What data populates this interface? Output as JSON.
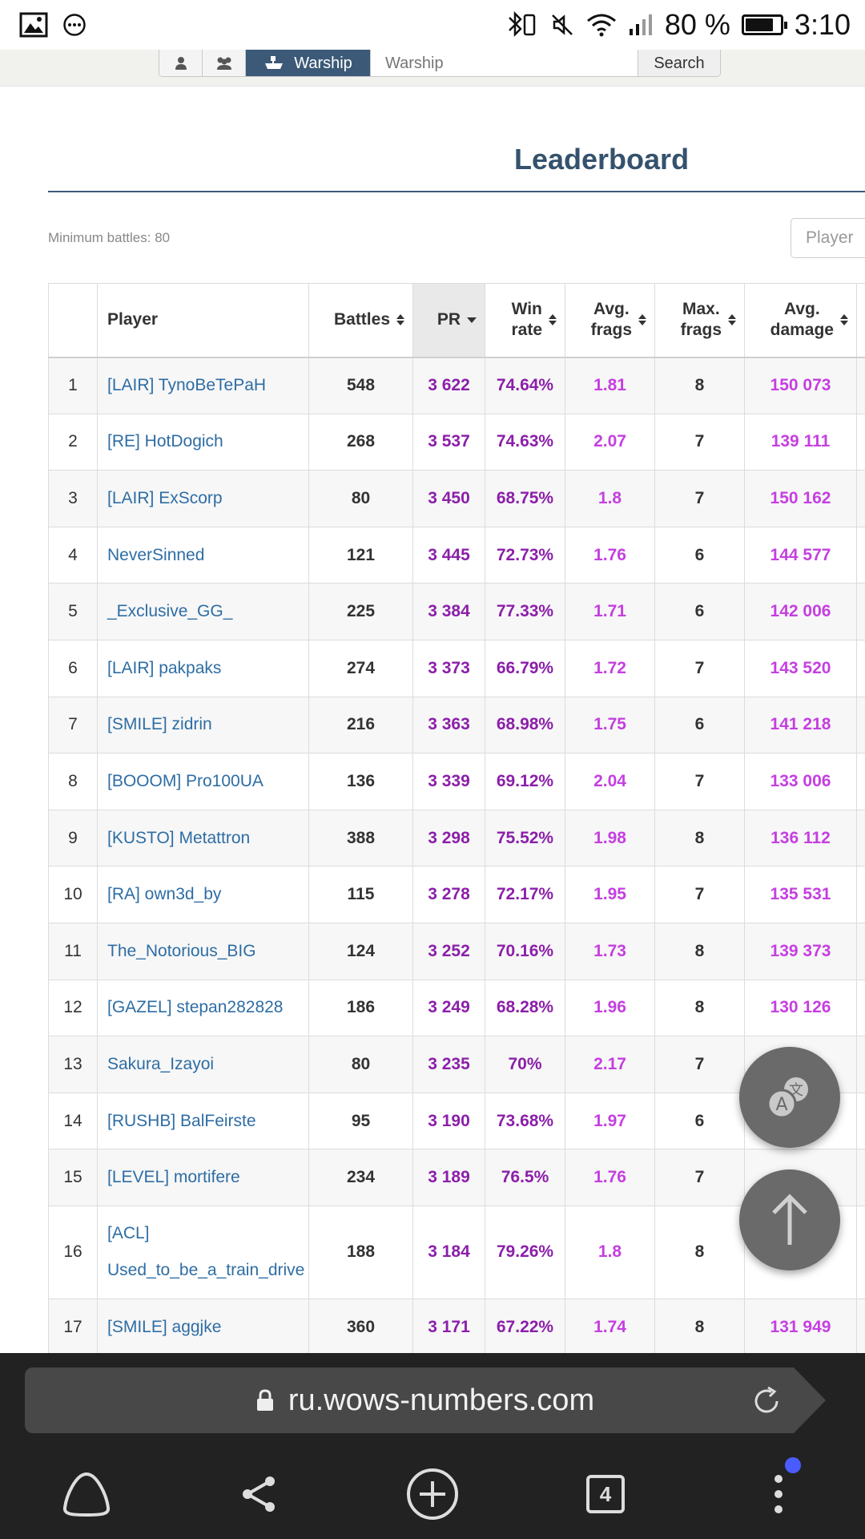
{
  "status_bar": {
    "battery_percent": "80 %",
    "battery_level": 0.8,
    "time": "3:10"
  },
  "search": {
    "ship_button_label": "Warship",
    "input_placeholder": "Warship",
    "search_button_label": "Search"
  },
  "page_title": "Leaderboard",
  "min_battles": "Minimum battles: 80",
  "player_filter_placeholder": "Player",
  "table": {
    "headers": {
      "player": "Player",
      "battles": "Battles",
      "pr": "PR",
      "winrate_1": "Win",
      "winrate_2": "rate",
      "avgfrags_1": "Avg.",
      "avgfrags_2": "frags",
      "maxfrags_1": "Max.",
      "maxfrags_2": "frags",
      "avgdmg_1": "Avg.",
      "avgdmg_2": "damage"
    },
    "rows": [
      {
        "rank": "1",
        "player": "[LAIR] TynoBeTePaH",
        "battles": "548",
        "pr": "3 622",
        "winrate": "74.64%",
        "avg_frags": "1.81",
        "max_frags": "8",
        "avg_damage": "150 073"
      },
      {
        "rank": "2",
        "player": "[RE] HotDogich",
        "battles": "268",
        "pr": "3 537",
        "winrate": "74.63%",
        "avg_frags": "2.07",
        "max_frags": "7",
        "avg_damage": "139 111"
      },
      {
        "rank": "3",
        "player": "[LAIR] ExScorp",
        "battles": "80",
        "pr": "3 450",
        "winrate": "68.75%",
        "avg_frags": "1.8",
        "max_frags": "7",
        "avg_damage": "150 162"
      },
      {
        "rank": "4",
        "player": "NeverSinned",
        "battles": "121",
        "pr": "3 445",
        "winrate": "72.73%",
        "avg_frags": "1.76",
        "max_frags": "6",
        "avg_damage": "144 577"
      },
      {
        "rank": "5",
        "player": "_Exclusive_GG_",
        "battles": "225",
        "pr": "3 384",
        "winrate": "77.33%",
        "avg_frags": "1.71",
        "max_frags": "6",
        "avg_damage": "142 006"
      },
      {
        "rank": "6",
        "player": "[LAIR] pakpaks",
        "battles": "274",
        "pr": "3 373",
        "winrate": "66.79%",
        "avg_frags": "1.72",
        "max_frags": "7",
        "avg_damage": "143 520"
      },
      {
        "rank": "7",
        "player": "[SMILE] zidrin",
        "battles": "216",
        "pr": "3 363",
        "winrate": "68.98%",
        "avg_frags": "1.75",
        "max_frags": "6",
        "avg_damage": "141 218"
      },
      {
        "rank": "8",
        "player": "[BOOOM] Pro100UA",
        "battles": "136",
        "pr": "3 339",
        "winrate": "69.12%",
        "avg_frags": "2.04",
        "max_frags": "7",
        "avg_damage": "133 006"
      },
      {
        "rank": "9",
        "player": "[KUSTO] Metattron",
        "battles": "388",
        "pr": "3 298",
        "winrate": "75.52%",
        "avg_frags": "1.98",
        "max_frags": "8",
        "avg_damage": "136 112"
      },
      {
        "rank": "10",
        "player": "[RA] own3d_by",
        "battles": "115",
        "pr": "3 278",
        "winrate": "72.17%",
        "avg_frags": "1.95",
        "max_frags": "7",
        "avg_damage": "135 531"
      },
      {
        "rank": "11",
        "player": "The_Notorious_BIG",
        "battles": "124",
        "pr": "3 252",
        "winrate": "70.16%",
        "avg_frags": "1.73",
        "max_frags": "8",
        "avg_damage": "139 373"
      },
      {
        "rank": "12",
        "player": "[GAZEL] stepan282828",
        "battles": "186",
        "pr": "3 249",
        "winrate": "68.28%",
        "avg_frags": "1.96",
        "max_frags": "8",
        "avg_damage": "130 126"
      },
      {
        "rank": "13",
        "player": "Sakura_Izayoi",
        "battles": "80",
        "pr": "3 235",
        "winrate": "70%",
        "avg_frags": "2.17",
        "max_frags": "7",
        "avg_damage": ""
      },
      {
        "rank": "14",
        "player": "[RUSHB] BalFeirste",
        "battles": "95",
        "pr": "3 190",
        "winrate": "73.68%",
        "avg_frags": "1.97",
        "max_frags": "6",
        "avg_damage": ""
      },
      {
        "rank": "15",
        "player": "[LEVEL] mortifere",
        "battles": "234",
        "pr": "3 189",
        "winrate": "76.5%",
        "avg_frags": "1.76",
        "max_frags": "7",
        "avg_damage": ""
      },
      {
        "rank": "16",
        "player_line1": "[ACL]",
        "player_line2": "Used_to_be_a_train_drive",
        "battles": "188",
        "pr": "3 184",
        "winrate": "79.26%",
        "avg_frags": "1.8",
        "max_frags": "8",
        "avg_damage": ""
      },
      {
        "rank": "17",
        "player": "[SMILE] aggjke",
        "battles": "360",
        "pr": "3 171",
        "winrate": "67.22%",
        "avg_frags": "1.74",
        "max_frags": "8",
        "avg_damage": "131 949"
      }
    ]
  },
  "browser": {
    "url": "ru.wows-numbers.com",
    "tab_count": "4"
  }
}
